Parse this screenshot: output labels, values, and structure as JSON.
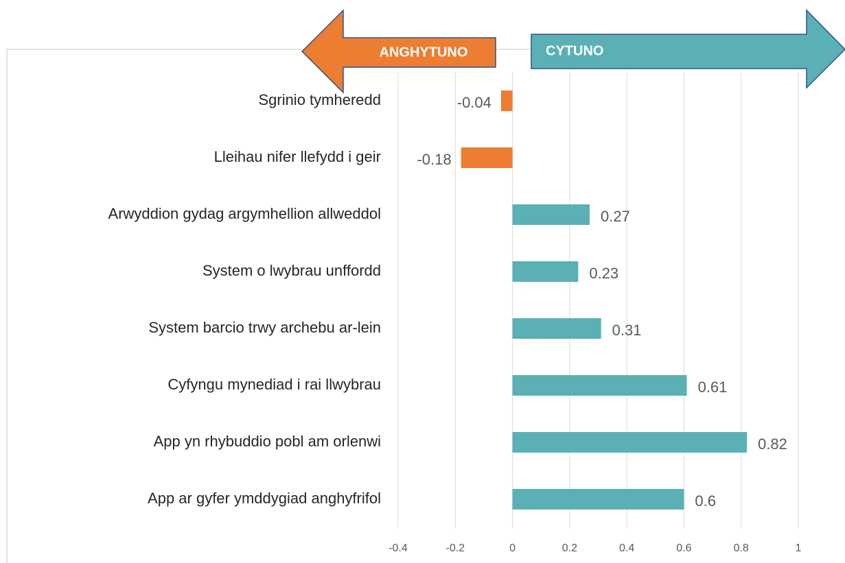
{
  "chart_data": {
    "type": "bar",
    "orientation": "horizontal",
    "annotations": [
      "ANGHYTUNO",
      "CYTUNO"
    ],
    "categories": [
      "Sgrinio tymheredd",
      "Lleihau nifer llefydd i geir",
      "Arwyddion gydag argymhellion allweddol",
      "System o lwybrau unffordd",
      "System barcio trwy archebu ar-lein",
      "Cyfyngu mynediad i rai llwybrau",
      "App yn rhybuddio pobl am orlenwi",
      "App ar gyfer ymddygiad anghyfrifol"
    ],
    "values": [
      -0.04,
      -0.18,
      0.27,
      0.23,
      0.31,
      0.61,
      0.82,
      0.6
    ],
    "colors": [
      "#ED7D31",
      "#ED7D31",
      "#5BB0B5",
      "#5BB0B5",
      "#5BB0B5",
      "#5BB0B5",
      "#5BB0B5",
      "#5BB0B5"
    ],
    "xlim": [
      -0.4,
      1
    ],
    "xticks": [
      -0.4,
      -0.2,
      0,
      0.2,
      0.4,
      0.6,
      0.8,
      1
    ],
    "grid": true
  }
}
